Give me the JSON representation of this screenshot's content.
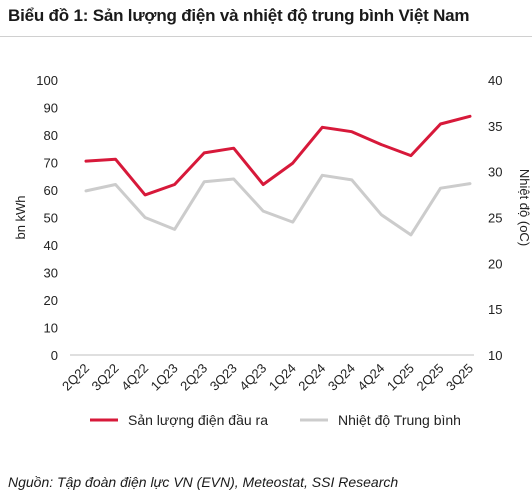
{
  "title": "Biểu đồ 1: Sản lượng điện và nhiệt độ trung bình Việt Nam",
  "source": "Nguồn: Tập đoàn điện lực VN (EVN), Meteostat, SSI Research",
  "colors": {
    "electricity": "#d7193a",
    "temperature": "#cccccc"
  },
  "chart_data": {
    "type": "line",
    "categories": [
      "2Q22",
      "3Q22",
      "4Q22",
      "1Q23",
      "2Q23",
      "3Q23",
      "4Q23",
      "1Q24",
      "2Q24",
      "3Q24",
      "4Q24",
      "1Q25",
      "2Q25",
      "3Q25"
    ],
    "ylabel": "bn kWh",
    "ylabel_right": "Nhiệt độ (oC)",
    "ylim": [
      0,
      100
    ],
    "yticks": [
      0,
      10,
      20,
      30,
      40,
      50,
      60,
      70,
      80,
      90,
      100
    ],
    "ylim_right": [
      10,
      40
    ],
    "yticks_right": [
      10,
      15,
      20,
      25,
      30,
      35,
      40
    ],
    "grid": false,
    "legend": "bottom",
    "series": [
      {
        "name": "Sản lượng điện đầu ra",
        "axis": "left",
        "values": [
          70.5,
          71.2,
          58.2,
          62.0,
          73.5,
          75.2,
          62.0,
          69.8,
          82.8,
          81.2,
          76.5,
          72.5,
          84.0,
          86.8
        ]
      },
      {
        "name": "Nhiệt độ Trung bình",
        "axis": "right",
        "values": [
          27.9,
          28.6,
          25.0,
          23.7,
          28.9,
          29.2,
          25.7,
          24.5,
          29.6,
          29.1,
          25.3,
          23.1,
          28.2,
          28.7
        ]
      }
    ]
  }
}
